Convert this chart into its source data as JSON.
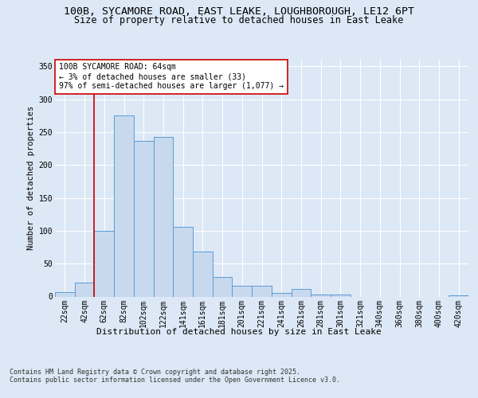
{
  "title_line1": "100B, SYCAMORE ROAD, EAST LEAKE, LOUGHBOROUGH, LE12 6PT",
  "title_line2": "Size of property relative to detached houses in East Leake",
  "xlabel": "Distribution of detached houses by size in East Leake",
  "ylabel": "Number of detached properties",
  "bar_labels": [
    "22sqm",
    "42sqm",
    "62sqm",
    "82sqm",
    "102sqm",
    "122sqm",
    "141sqm",
    "161sqm",
    "181sqm",
    "201sqm",
    "221sqm",
    "241sqm",
    "261sqm",
    "281sqm",
    "301sqm",
    "321sqm",
    "340sqm",
    "360sqm",
    "380sqm",
    "400sqm",
    "420sqm"
  ],
  "bar_values": [
    7,
    21,
    100,
    275,
    236,
    243,
    106,
    68,
    30,
    16,
    16,
    6,
    11,
    3,
    3,
    0,
    0,
    0,
    0,
    0,
    2
  ],
  "bar_color": "#c8d9ed",
  "bar_edge_color": "#5b9bd5",
  "vline_index": 2,
  "annotation_line1": "100B SYCAMORE ROAD: 64sqm",
  "annotation_line2": "← 3% of detached houses are smaller (33)",
  "annotation_line3": "97% of semi-detached houses are larger (1,077) →",
  "annotation_box_color": "#ffffff",
  "annotation_box_edgecolor": "#cc0000",
  "vline_color": "#cc0000",
  "ylim": [
    0,
    360
  ],
  "yticks": [
    0,
    50,
    100,
    150,
    200,
    250,
    300,
    350
  ],
  "background_color": "#dce8f5",
  "plot_background": "#dce8f5",
  "footer_line1": "Contains HM Land Registry data © Crown copyright and database right 2025.",
  "footer_line2": "Contains public sector information licensed under the Open Government Licence v3.0.",
  "grid_color": "#ffffff",
  "title_fontsize": 9.5,
  "subtitle_fontsize": 8.5,
  "tick_fontsize": 7,
  "ylabel_fontsize": 7.5,
  "xlabel_fontsize": 8,
  "annotation_fontsize": 7,
  "footer_fontsize": 6
}
